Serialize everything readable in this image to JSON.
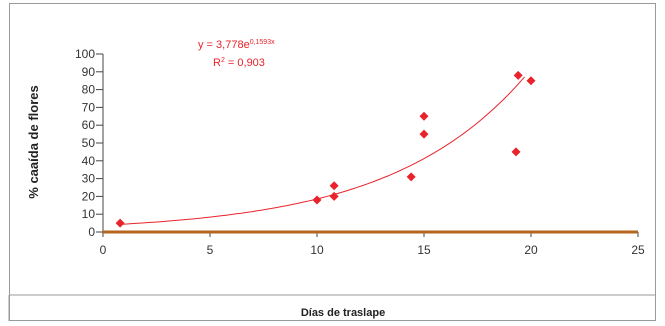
{
  "chart_data": {
    "type": "scatter",
    "xlabel": "Días de traslape",
    "ylabel": "% caaída de flores",
    "xlim": [
      0,
      25
    ],
    "ylim": [
      0,
      100
    ],
    "xticks": [
      0,
      5,
      10,
      15,
      20,
      25
    ],
    "yticks": [
      0,
      10,
      20,
      30,
      40,
      50,
      60,
      70,
      80,
      90,
      100
    ],
    "x_tick_labels": [
      "0",
      "5",
      "10",
      "15",
      "20",
      "25"
    ],
    "y_tick_labels": [
      "0",
      "10",
      "20",
      "30",
      "40",
      "50",
      "60",
      "70",
      "80",
      "90",
      "100"
    ],
    "points": [
      {
        "x": 0.8,
        "y": 5
      },
      {
        "x": 10,
        "y": 18
      },
      {
        "x": 10.8,
        "y": 20
      },
      {
        "x": 10.8,
        "y": 26
      },
      {
        "x": 14.4,
        "y": 31
      },
      {
        "x": 15,
        "y": 55
      },
      {
        "x": 15,
        "y": 65
      },
      {
        "x": 19.3,
        "y": 45
      },
      {
        "x": 19.4,
        "y": 88
      },
      {
        "x": 20,
        "y": 85
      }
    ],
    "trendline": {
      "type": "exponential",
      "a": 3.778,
      "b": 0.1593,
      "x_from": 0.8,
      "x_to": 19.7
    },
    "equation_prefix": "y = 3,778e",
    "equation_exponent": "0,1593x",
    "r2_prefix": "R",
    "r2_exponent": "2",
    "r2_value": " = 0,903",
    "grid": false,
    "colors": {
      "points": "#e8232b",
      "trendline": "#e8232b",
      "x_axis": "#b5651d",
      "y_axis": "#444444",
      "equation": "#e8232b"
    }
  }
}
